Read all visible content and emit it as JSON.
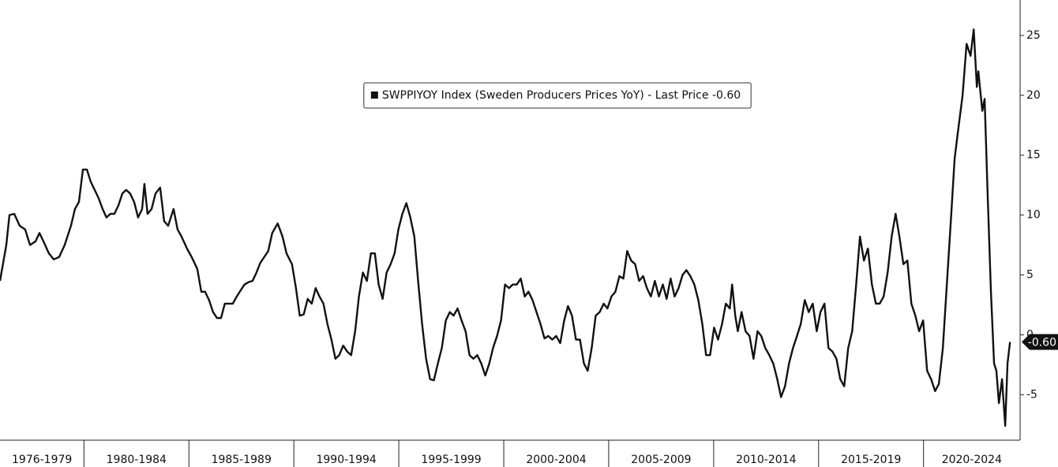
{
  "chart_data": {
    "type": "line",
    "x": [
      1976.0,
      1976.3,
      1976.45,
      1976.68,
      1976.94,
      1977.2,
      1977.43,
      1977.69,
      1977.88,
      1978.07,
      1978.33,
      1978.56,
      1978.82,
      1979.08,
      1979.38,
      1979.57,
      1979.76,
      1979.95,
      1980.14,
      1980.32,
      1980.51,
      1980.7,
      1980.89,
      1981.07,
      1981.26,
      1981.45,
      1981.64,
      1981.83,
      1982.01,
      1982.2,
      1982.39,
      1982.58,
      1982.77,
      1982.88,
      1983.03,
      1983.22,
      1983.41,
      1983.63,
      1983.82,
      1984.01,
      1984.27,
      1984.46,
      1984.65,
      1984.91,
      1985.13,
      1985.4,
      1985.59,
      1985.77,
      1985.96,
      1986.15,
      1986.34,
      1986.53,
      1986.71,
      1986.9,
      1987.09,
      1987.28,
      1987.46,
      1987.65,
      1987.84,
      1988.03,
      1988.22,
      1988.4,
      1988.59,
      1988.78,
      1988.97,
      1989.23,
      1989.46,
      1989.65,
      1989.91,
      1990.1,
      1990.28,
      1990.47,
      1990.66,
      1990.85,
      1991.04,
      1991.22,
      1991.41,
      1991.6,
      1991.79,
      1991.98,
      1992.16,
      1992.35,
      1992.54,
      1992.73,
      1992.92,
      1993.1,
      1993.29,
      1993.48,
      1993.67,
      1993.86,
      1994.04,
      1994.23,
      1994.42,
      1994.61,
      1994.8,
      1994.98,
      1995.17,
      1995.36,
      1995.55,
      1995.74,
      1995.92,
      1996.11,
      1996.3,
      1996.49,
      1996.67,
      1996.86,
      1997.05,
      1997.24,
      1997.43,
      1997.61,
      1997.8,
      1997.99,
      1998.18,
      1998.37,
      1998.55,
      1998.74,
      1998.93,
      1999.12,
      1999.31,
      1999.49,
      1999.68,
      1999.87,
      2000.06,
      2000.25,
      2000.43,
      2000.62,
      2000.81,
      2001.0,
      2001.18,
      2001.37,
      2001.56,
      2001.75,
      2001.94,
      2002.12,
      2002.31,
      2002.5,
      2002.69,
      2002.88,
      2003.06,
      2003.25,
      2003.44,
      2003.63,
      2003.82,
      2004.0,
      2004.19,
      2004.38,
      2004.57,
      2004.76,
      2004.94,
      2005.13,
      2005.32,
      2005.51,
      2005.7,
      2005.88,
      2006.07,
      2006.26,
      2006.45,
      2006.64,
      2006.82,
      2007.01,
      2007.2,
      2007.39,
      2007.58,
      2007.76,
      2007.95,
      2008.14,
      2008.33,
      2008.52,
      2008.7,
      2008.89,
      2009.08,
      2009.27,
      2009.46,
      2009.64,
      2009.83,
      2010.02,
      2010.21,
      2010.4,
      2010.58,
      2010.77,
      2010.88,
      2011.03,
      2011.15,
      2011.33,
      2011.52,
      2011.71,
      2011.9,
      2012.09,
      2012.27,
      2012.46,
      2012.65,
      2012.84,
      2013.03,
      2013.21,
      2013.4,
      2013.59,
      2013.78,
      2013.97,
      2014.15,
      2014.34,
      2014.53,
      2014.72,
      2014.91,
      2015.09,
      2015.28,
      2015.47,
      2015.66,
      2015.85,
      2016.03,
      2016.22,
      2016.41,
      2016.6,
      2016.79,
      2016.97,
      2017.16,
      2017.35,
      2017.54,
      2017.73,
      2017.91,
      2018.1,
      2018.29,
      2018.48,
      2018.67,
      2018.85,
      2019.04,
      2019.23,
      2019.42,
      2019.61,
      2019.79,
      2019.98,
      2020.17,
      2020.36,
      2020.55,
      2020.73,
      2020.92,
      2021.11,
      2021.3,
      2021.48,
      2021.67,
      2021.86,
      2022.05,
      2022.24,
      2022.39,
      2022.54,
      2022.61,
      2022.8,
      2022.91,
      2023.06,
      2023.21,
      2023.36,
      2023.47,
      2023.59,
      2023.74,
      2023.89,
      2024.0,
      2024.12
    ],
    "series": [
      {
        "name": "SWPPIYOY Index (Sweden Producers Prices YoY) - Last Price -0.60",
        "color": "#111111",
        "values": [
          4.5,
          7.5,
          10.0,
          10.1,
          9.1,
          8.8,
          7.5,
          7.8,
          8.5,
          7.8,
          6.8,
          6.3,
          6.5,
          7.5,
          9.1,
          10.5,
          11.1,
          13.8,
          13.8,
          12.8,
          12.1,
          11.4,
          10.5,
          9.8,
          10.1,
          10.1,
          10.8,
          11.8,
          12.1,
          11.8,
          11.1,
          9.8,
          10.5,
          12.6,
          10.1,
          10.5,
          11.8,
          12.3,
          9.5,
          9.1,
          10.5,
          8.8,
          8.2,
          7.2,
          6.5,
          5.5,
          3.6,
          3.6,
          2.9,
          1.9,
          1.4,
          1.4,
          2.6,
          2.6,
          2.6,
          3.2,
          3.7,
          4.2,
          4.4,
          4.5,
          5.2,
          6.0,
          6.5,
          7.0,
          8.5,
          9.3,
          8.2,
          6.8,
          5.9,
          3.9,
          1.6,
          1.7,
          3.0,
          2.6,
          3.9,
          3.2,
          2.6,
          0.9,
          -0.4,
          -2.0,
          -1.7,
          -0.9,
          -1.4,
          -1.7,
          0.3,
          3.2,
          5.2,
          4.5,
          6.8,
          6.8,
          4.2,
          3.0,
          5.2,
          5.9,
          6.8,
          8.8,
          10.1,
          11.0,
          9.8,
          8.2,
          4.5,
          0.9,
          -2.0,
          -3.7,
          -3.8,
          -2.4,
          -1.1,
          1.2,
          1.9,
          1.6,
          2.2,
          1.2,
          0.3,
          -1.7,
          -2.0,
          -1.7,
          -2.4,
          -3.4,
          -2.4,
          -1.1,
          -0.1,
          1.2,
          4.2,
          3.9,
          4.2,
          4.2,
          4.7,
          3.2,
          3.6,
          2.9,
          1.9,
          0.9,
          -0.3,
          -0.1,
          -0.4,
          -0.1,
          -0.7,
          1.2,
          2.4,
          1.6,
          -0.4,
          -0.4,
          -2.4,
          -3.0,
          -1.1,
          1.6,
          1.9,
          2.6,
          2.2,
          3.2,
          3.6,
          4.9,
          4.7,
          7.0,
          6.2,
          5.9,
          4.5,
          4.9,
          3.9,
          3.2,
          4.5,
          3.2,
          4.2,
          3.0,
          4.7,
          3.2,
          3.9,
          5.0,
          5.4,
          4.9,
          4.2,
          2.9,
          0.9,
          -1.7,
          -1.7,
          0.6,
          -0.4,
          0.9,
          2.6,
          2.2,
          4.2,
          1.6,
          0.3,
          1.9,
          0.3,
          -0.1,
          -2.0,
          0.3,
          -0.1,
          -1.1,
          -1.7,
          -2.4,
          -3.7,
          -5.2,
          -4.3,
          -2.4,
          -1.1,
          -0.1,
          0.9,
          2.9,
          1.9,
          2.6,
          0.3,
          1.9,
          2.6,
          -1.1,
          -1.4,
          -2.0,
          -3.7,
          -4.3,
          -1.1,
          0.3,
          4.2,
          8.2,
          6.2,
          7.2,
          4.2,
          2.6,
          2.6,
          3.2,
          5.2,
          8.2,
          10.1,
          8.2,
          5.9,
          6.2,
          2.6,
          1.6,
          0.3,
          1.2,
          -3.0,
          -3.7,
          -4.7,
          -4.1,
          -1.1,
          4.2,
          9.5,
          14.7,
          17.4,
          20.0,
          24.3,
          23.3,
          25.5,
          20.7,
          22.0,
          18.7,
          19.7,
          11.4,
          3.6,
          -2.4,
          -3.0,
          -5.7,
          -3.7,
          -7.6,
          -2.4,
          -0.6
        ],
        "last_price_label": "-0.60"
      }
    ],
    "x_periods": [
      {
        "label": "1976-1979",
        "start": 1976,
        "end": 1980
      },
      {
        "label": "1980-1984",
        "start": 1980,
        "end": 1985
      },
      {
        "label": "1985-1989",
        "start": 1985,
        "end": 1990
      },
      {
        "label": "1990-1994",
        "start": 1990,
        "end": 1995
      },
      {
        "label": "1995-1999",
        "start": 1995,
        "end": 2000
      },
      {
        "label": "2000-2004",
        "start": 2000,
        "end": 2005
      },
      {
        "label": "2005-2009",
        "start": 2005,
        "end": 2010
      },
      {
        "label": "2010-2014",
        "start": 2010,
        "end": 2015
      },
      {
        "label": "2015-2019",
        "start": 2015,
        "end": 2020
      },
      {
        "label": "2020-2024",
        "start": 2020,
        "end": 2024.6
      }
    ],
    "xlim": [
      1976,
      2024.6
    ],
    "ylim": [
      -8.8,
      27.96
    ],
    "yticks": [
      -5,
      0,
      5,
      10,
      15,
      20,
      25
    ],
    "y_axis_side": "right",
    "legend": "top-center"
  }
}
